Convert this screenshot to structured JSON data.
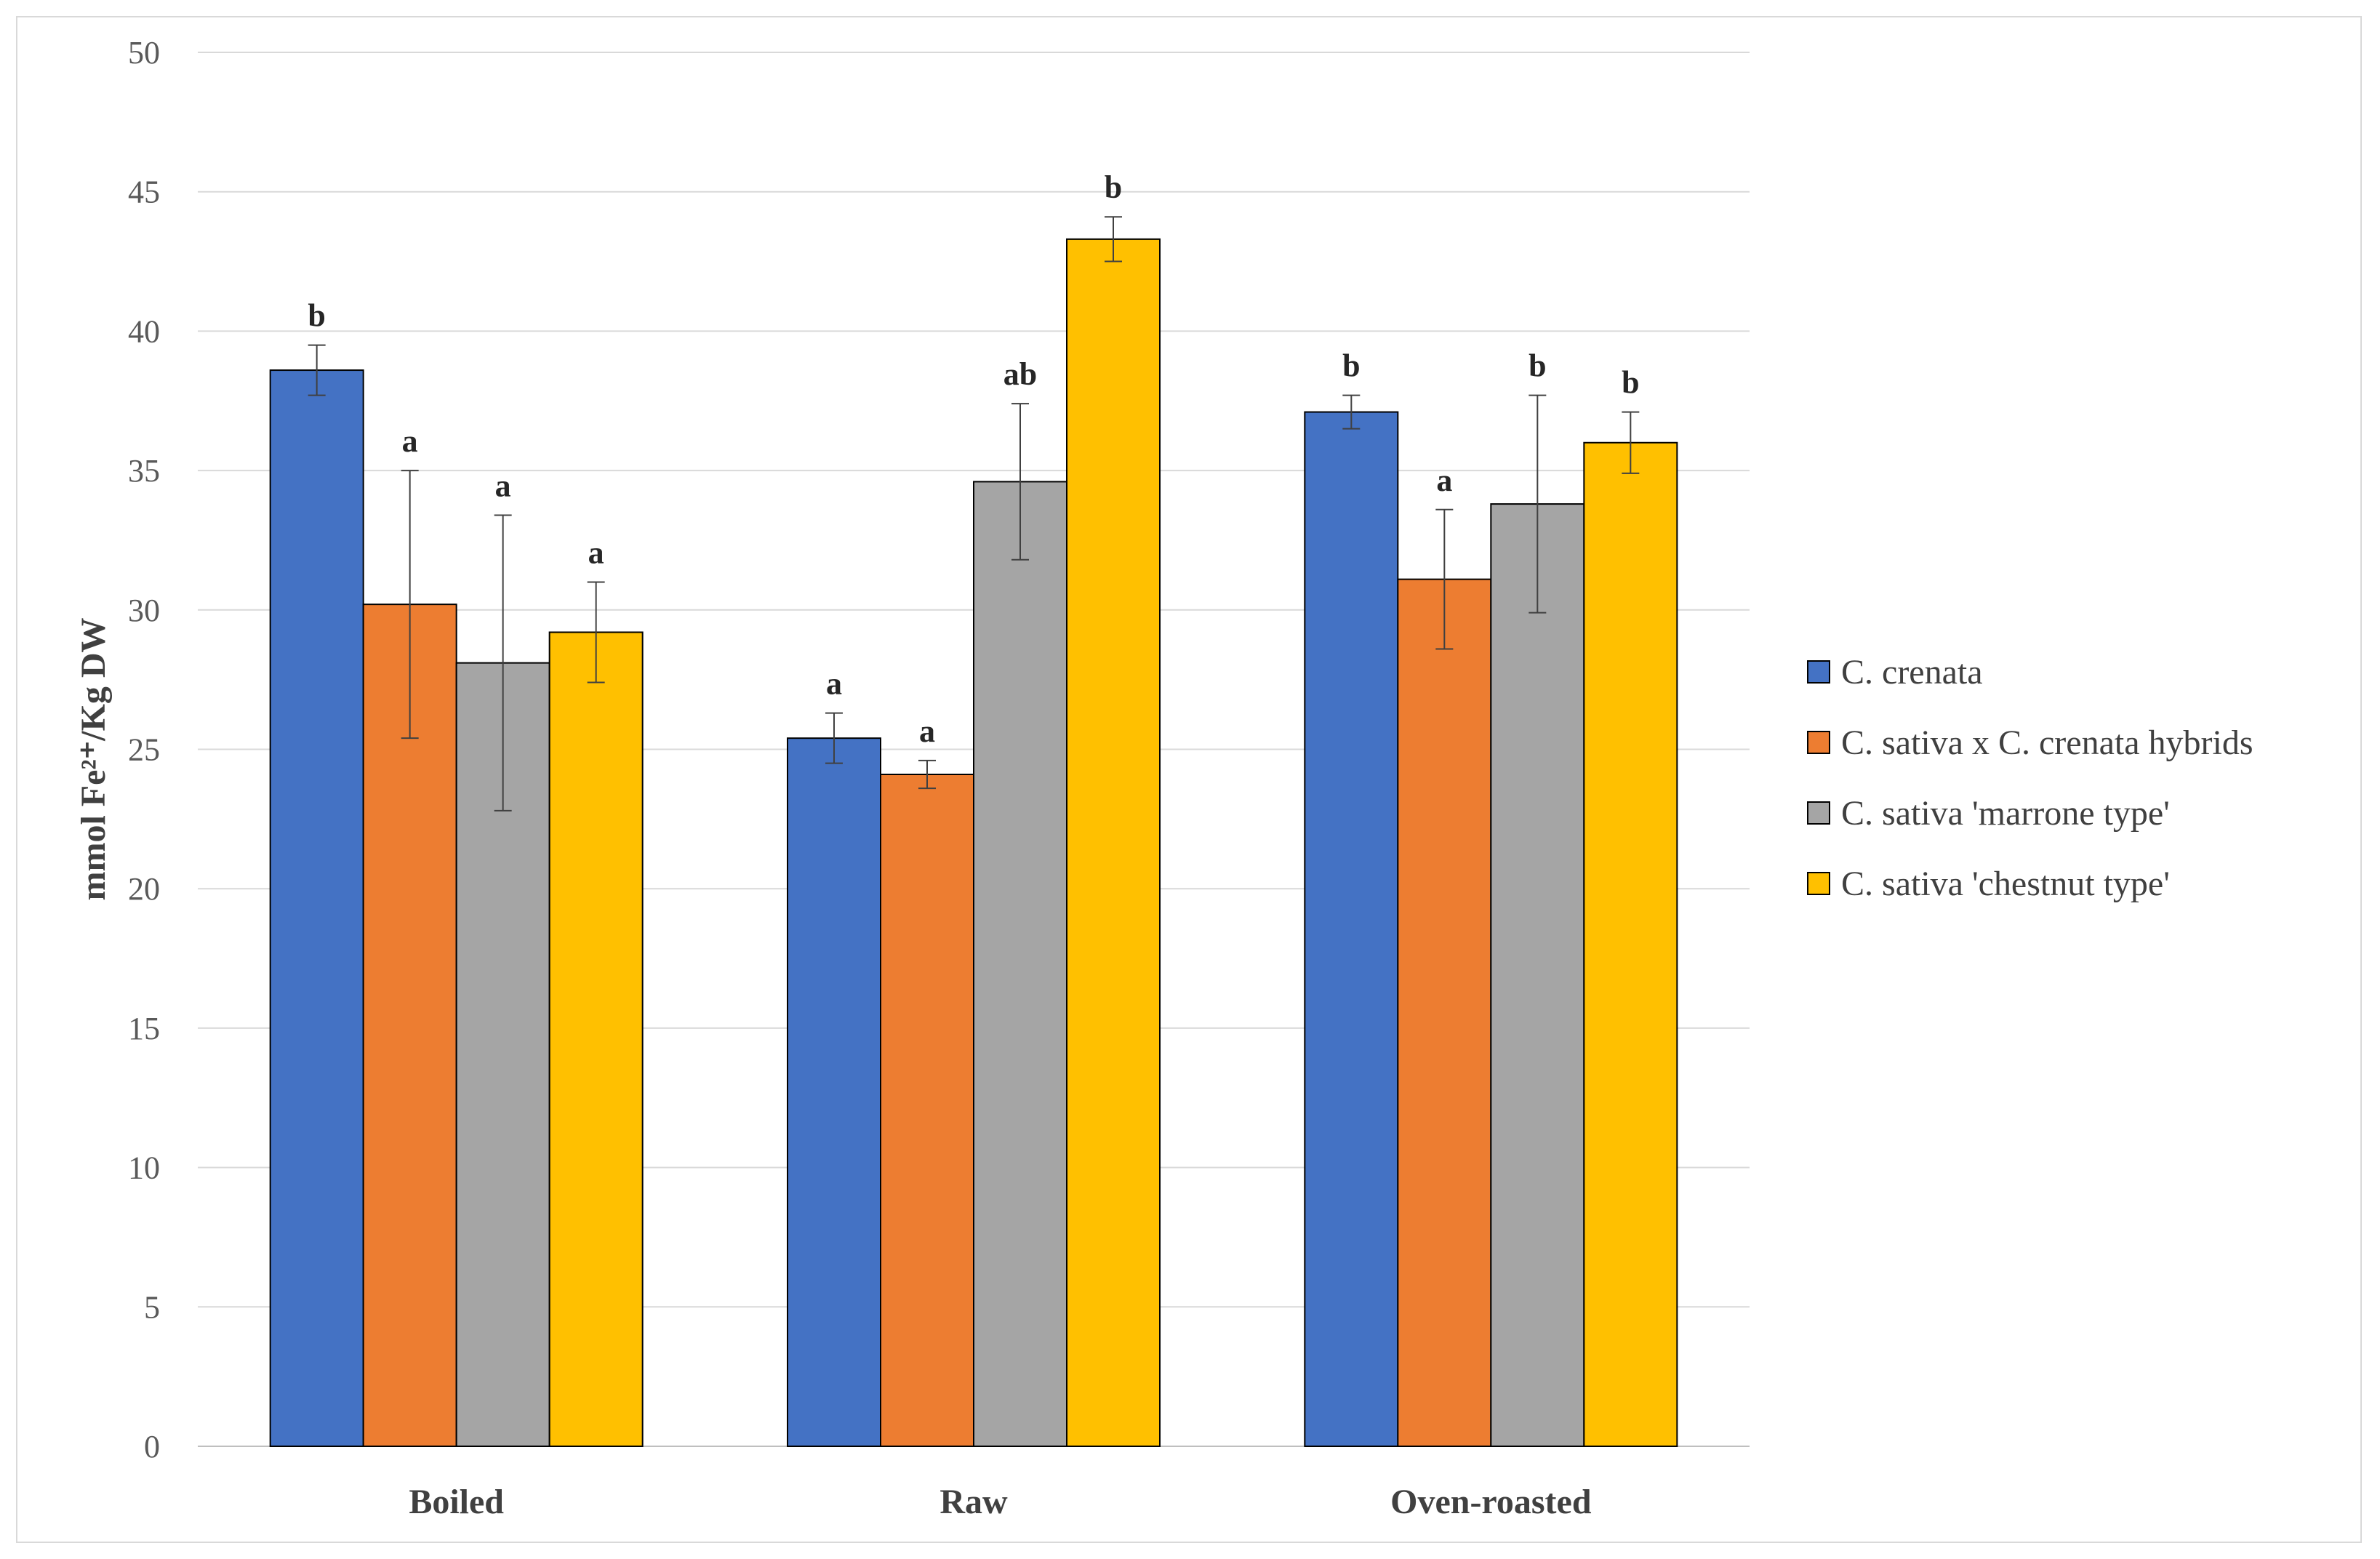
{
  "chart_data": {
    "type": "bar",
    "title": "",
    "xlabel": "",
    "ylabel": "mmol Fe²⁺/Kg DW",
    "ylim": [
      0,
      50
    ],
    "yticks": [
      "0",
      "5",
      "10",
      "15",
      "20",
      "25",
      "30",
      "35",
      "40",
      "45",
      "50"
    ],
    "grid": true,
    "legend_position": "right",
    "categories": [
      "Boiled",
      "Raw",
      "Oven-roasted"
    ],
    "series": [
      {
        "name": "C. crenata",
        "color": "#4472c4",
        "values": [
          38.6,
          25.4,
          37.1
        ],
        "errors": [
          0.9,
          0.9,
          0.6
        ],
        "letters": [
          "b",
          "a",
          "b"
        ]
      },
      {
        "name": "C. sativa x C. crenata hybrids",
        "color": "#ed7d31",
        "values": [
          30.2,
          24.1,
          31.1
        ],
        "errors": [
          4.8,
          0.5,
          2.5
        ],
        "letters": [
          "a",
          "a",
          "a"
        ]
      },
      {
        "name": "C. sativa 'marrone type'",
        "color": "#a5a5a5",
        "values": [
          28.1,
          34.6,
          33.8
        ],
        "errors": [
          5.3,
          2.8,
          3.9
        ],
        "letters": [
          "a",
          "ab",
          "b"
        ]
      },
      {
        "name": "C. sativa 'chestnut type'",
        "color": "#ffc000",
        "values": [
          29.2,
          43.3,
          36.0
        ],
        "errors": [
          1.8,
          0.8,
          1.1
        ],
        "letters": [
          "a",
          "b",
          "b"
        ]
      }
    ]
  }
}
